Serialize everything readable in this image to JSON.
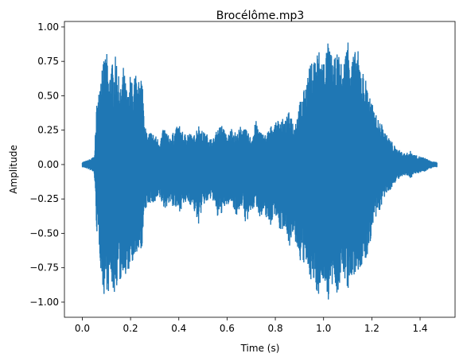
{
  "chart_data": {
    "type": "line",
    "title": "Brocélôme.mp3",
    "xlabel": "Time (s)",
    "ylabel": "Amplitude",
    "xlim": [
      -0.074,
      1.545
    ],
    "ylim": [
      -1.11,
      1.04
    ],
    "xticks": [
      "0.0",
      "0.2",
      "0.4",
      "0.6",
      "0.8",
      "1.0",
      "1.2",
      "1.4"
    ],
    "yticks": [
      "-1.00",
      "-0.75",
      "-0.50",
      "-0.25",
      "0.00",
      "0.25",
      "0.50",
      "0.75",
      "1.00"
    ],
    "grid": false,
    "legend": "none",
    "color": "#1f77b4",
    "series": [
      {
        "x": [
          0.0,
          0.02,
          0.04,
          0.05,
          0.06,
          0.07,
          0.08,
          0.09,
          0.1,
          0.11,
          0.12,
          0.13,
          0.14,
          0.15,
          0.16,
          0.17,
          0.18,
          0.19,
          0.2,
          0.21,
          0.22,
          0.23,
          0.24,
          0.25,
          0.26,
          0.27,
          0.28,
          0.3,
          0.32,
          0.34,
          0.36,
          0.38,
          0.4,
          0.42,
          0.44,
          0.46,
          0.48,
          0.5,
          0.52,
          0.54,
          0.56,
          0.58,
          0.6,
          0.62,
          0.64,
          0.66,
          0.68,
          0.7,
          0.72,
          0.74,
          0.76,
          0.78,
          0.8,
          0.82,
          0.84,
          0.86,
          0.88,
          0.9,
          0.92,
          0.94,
          0.96,
          0.98,
          1.0,
          1.02,
          1.04,
          1.06,
          1.08,
          1.1,
          1.12,
          1.14,
          1.16,
          1.18,
          1.2,
          1.22,
          1.24,
          1.26,
          1.28,
          1.3,
          1.32,
          1.34,
          1.36,
          1.38,
          1.4,
          1.42,
          1.44,
          1.46,
          1.47
        ],
        "upper": [
          0.02,
          0.03,
          0.05,
          0.06,
          0.45,
          0.55,
          0.8,
          0.75,
          0.85,
          0.6,
          0.78,
          0.7,
          0.82,
          0.65,
          0.55,
          0.72,
          0.6,
          0.5,
          0.68,
          0.55,
          0.7,
          0.52,
          0.75,
          0.6,
          0.3,
          0.2,
          0.25,
          0.22,
          0.18,
          0.28,
          0.2,
          0.24,
          0.3,
          0.22,
          0.25,
          0.2,
          0.3,
          0.24,
          0.22,
          0.18,
          0.26,
          0.3,
          0.2,
          0.28,
          0.22,
          0.3,
          0.25,
          0.2,
          0.32,
          0.24,
          0.22,
          0.28,
          0.3,
          0.35,
          0.32,
          0.4,
          0.3,
          0.45,
          0.55,
          0.7,
          0.8,
          0.85,
          0.78,
          0.9,
          0.75,
          0.82,
          0.7,
          0.95,
          0.8,
          0.85,
          0.7,
          0.6,
          0.45,
          0.35,
          0.3,
          0.22,
          0.18,
          0.12,
          0.1,
          0.08,
          0.1,
          0.07,
          0.06,
          0.05,
          0.03,
          0.02,
          0.02
        ],
        "lower": [
          -0.02,
          -0.03,
          -0.05,
          -0.07,
          -0.5,
          -0.6,
          -0.85,
          -0.96,
          -0.9,
          -0.95,
          -0.85,
          -0.96,
          -0.92,
          -0.8,
          -0.9,
          -0.75,
          -0.88,
          -0.82,
          -0.7,
          -0.8,
          -0.75,
          -0.6,
          -0.72,
          -0.55,
          -0.35,
          -0.3,
          -0.28,
          -0.3,
          -0.25,
          -0.33,
          -0.28,
          -0.32,
          -0.35,
          -0.3,
          -0.28,
          -0.32,
          -0.45,
          -0.3,
          -0.28,
          -0.25,
          -0.4,
          -0.35,
          -0.3,
          -0.28,
          -0.38,
          -0.3,
          -0.45,
          -0.35,
          -0.3,
          -0.4,
          -0.38,
          -0.45,
          -0.35,
          -0.5,
          -0.45,
          -0.6,
          -0.55,
          -0.7,
          -0.75,
          -0.8,
          -0.9,
          -0.95,
          -0.85,
          -1.0,
          -0.9,
          -0.95,
          -0.8,
          -0.92,
          -0.85,
          -0.8,
          -0.75,
          -0.7,
          -0.5,
          -0.4,
          -0.3,
          -0.22,
          -0.18,
          -0.12,
          -0.1,
          -0.08,
          -0.1,
          -0.07,
          -0.06,
          -0.05,
          -0.03,
          -0.02,
          -0.02
        ]
      }
    ]
  }
}
